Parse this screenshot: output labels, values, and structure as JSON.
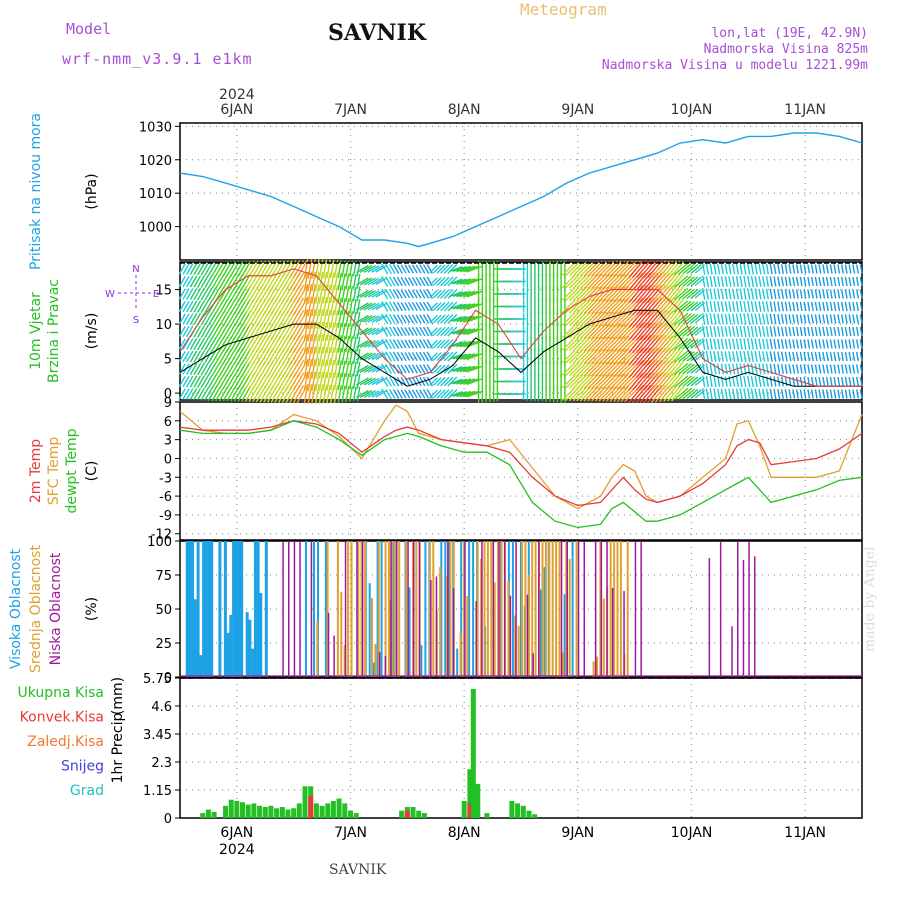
{
  "header": {
    "model_label": "Model",
    "model_name": "wrf-nmm_v3.9.1 e1km",
    "title": "SAVNIK",
    "subtitle": "Meteogram",
    "lonlat": "lon,lat (19E, 42.9N)",
    "altitude": "Nadmorska Visina 825m",
    "model_altitude": "Nadmorska Visina u modelu 1221.99m",
    "footer": "SAVNIK",
    "watermark": "made by Angel"
  },
  "colors": {
    "pressure": "#1ea2e6",
    "temp2m": "#e83a3a",
    "sfc": "#e0a030",
    "dewpt": "#22c022",
    "high_cloud": "#1ea2e6",
    "mid_cloud": "#e0a030",
    "low_cloud": "#a0189a",
    "precip_total": "#22c022",
    "precip_conv": "#e83a3a",
    "precip_frz": "#f07830",
    "snow": "#4040e0",
    "grad": "#20c0c0",
    "wind_hi": "#8a2be2"
  },
  "chart_data": {
    "time_axis": {
      "year": "2024",
      "x_start_day": 5.5,
      "x_end_day": 11.5,
      "ticks": [
        {
          "day": 6,
          "label": "6JAN"
        },
        {
          "day": 7,
          "label": "7JAN"
        },
        {
          "day": 8,
          "label": "8JAN"
        },
        {
          "day": 9,
          "label": "9JAN"
        },
        {
          "day": 10,
          "label": "10JAN"
        },
        {
          "day": 11,
          "label": "11JAN"
        }
      ]
    },
    "panels": [
      {
        "id": "pressure",
        "type": "line",
        "ylabel_lines": [
          "Pritisak na nivou mora"
        ],
        "unit": "(hPa)",
        "ylim": [
          990,
          1031
        ],
        "yticks": [
          1000,
          1010,
          1020,
          1030
        ],
        "series": [
          {
            "key": "pressure",
            "x": [
              5.5,
              5.7,
              5.9,
              6.1,
              6.3,
              6.5,
              6.7,
              6.9,
              7.0,
              7.1,
              7.3,
              7.5,
              7.6,
              7.7,
              7.9,
              8.1,
              8.3,
              8.5,
              8.7,
              8.9,
              9.1,
              9.3,
              9.5,
              9.7,
              9.9,
              10.1,
              10.3,
              10.5,
              10.7,
              10.9,
              11.1,
              11.3,
              11.5
            ],
            "y": [
              1016,
              1015,
              1013,
              1011,
              1009,
              1006,
              1003,
              1000,
              998,
              996,
              996,
              995,
              994,
              995,
              997,
              1000,
              1003,
              1006,
              1009,
              1013,
              1016,
              1018,
              1020,
              1022,
              1025,
              1026,
              1025,
              1027,
              1027,
              1028,
              1028,
              1027,
              1025
            ]
          }
        ]
      },
      {
        "id": "wind",
        "type": "line",
        "ylabel_lines": [
          "10m Vjetar",
          "Brzina i Pravac"
        ],
        "unit": "(m/s)",
        "ylim": [
          -1,
          19
        ],
        "yticks": [
          0,
          5,
          10,
          15
        ],
        "compass": [
          "N",
          "W",
          "E",
          "S"
        ],
        "series": [
          {
            "key": "speed",
            "x": [
              5.5,
              5.7,
              5.9,
              6.1,
              6.3,
              6.5,
              6.7,
              6.9,
              7.1,
              7.3,
              7.5,
              7.7,
              7.9,
              8.1,
              8.3,
              8.5,
              8.7,
              8.9,
              9.1,
              9.3,
              9.5,
              9.7,
              9.9,
              10.1,
              10.3,
              10.5,
              10.7,
              10.9,
              11.1,
              11.3,
              11.5
            ],
            "y": [
              3,
              5,
              7,
              8,
              9,
              10,
              10,
              8,
              5,
              3,
              1,
              2,
              4,
              8,
              6,
              3,
              6,
              8,
              10,
              11,
              12,
              12,
              8,
              3,
              2,
              3,
              2,
              1,
              1,
              1,
              1
            ]
          },
          {
            "key": "gust",
            "x": [
              5.5,
              5.7,
              5.9,
              6.1,
              6.3,
              6.5,
              6.7,
              6.9,
              7.1,
              7.3,
              7.5,
              7.7,
              7.9,
              8.1,
              8.3,
              8.5,
              8.7,
              8.9,
              9.1,
              9.3,
              9.5,
              9.7,
              9.9,
              10.1,
              10.3,
              10.5,
              10.7,
              10.9,
              11.1,
              11.3,
              11.5
            ],
            "y": [
              6,
              11,
              15,
              17,
              17,
              18,
              17,
              13,
              9,
              5,
              2,
              3,
              7,
              12,
              10,
              5,
              9,
              12,
              14,
              15,
              15,
              15,
              12,
              5,
              3,
              4,
              3,
              2,
              1,
              1,
              1
            ]
          }
        ]
      },
      {
        "id": "temp",
        "type": "line",
        "ylabel_lines": [
          "2m Temp",
          "SFC Temp",
          "dewpt Temp"
        ],
        "unit": "(C)",
        "ylim": [
          -13,
          9
        ],
        "yticks": [
          9,
          6,
          3,
          0,
          -3,
          -6,
          -9,
          -12
        ],
        "series": [
          {
            "key": "temp2m",
            "x": [
              5.5,
              5.7,
              5.9,
              6.1,
              6.3,
              6.5,
              6.7,
              6.9,
              7.1,
              7.3,
              7.4,
              7.5,
              7.6,
              7.8,
              8.0,
              8.2,
              8.4,
              8.6,
              8.8,
              9.0,
              9.2,
              9.3,
              9.4,
              9.5,
              9.6,
              9.7,
              9.9,
              10.1,
              10.3,
              10.4,
              10.5,
              10.6,
              10.7,
              10.9,
              11.1,
              11.3,
              11.5
            ],
            "y": [
              5,
              4.5,
              4.5,
              4.5,
              5,
              6,
              5.5,
              4,
              1,
              3.5,
              4.5,
              5,
              4.5,
              3,
              2.5,
              2,
              1,
              -3,
              -6,
              -7.5,
              -7,
              -5,
              -3,
              -5,
              -6.5,
              -7,
              -6,
              -4,
              -1,
              2,
              3,
              2.5,
              -1,
              -0.5,
              0,
              1.5,
              4
            ]
          },
          {
            "key": "sfc",
            "x": [
              5.5,
              5.7,
              5.9,
              6.1,
              6.3,
              6.5,
              6.7,
              6.9,
              7.1,
              7.3,
              7.4,
              7.5,
              7.6,
              7.8,
              8.0,
              8.2,
              8.4,
              8.6,
              8.8,
              9.0,
              9.2,
              9.3,
              9.4,
              9.5,
              9.6,
              9.7,
              9.9,
              10.1,
              10.3,
              10.4,
              10.5,
              10.6,
              10.7,
              10.9,
              11.1,
              11.3,
              11.5
            ],
            "y": [
              7.5,
              4.5,
              4,
              4,
              4.5,
              7,
              6,
              3.5,
              0,
              6,
              8.5,
              7.5,
              4,
              3,
              2.5,
              2,
              3,
              -1.5,
              -6,
              -8,
              -6,
              -3,
              -1,
              -2,
              -6,
              -7,
              -6,
              -3,
              0,
              5.5,
              6,
              2,
              -3,
              -3,
              -3,
              -2,
              7
            ]
          },
          {
            "key": "dewpt",
            "x": [
              5.5,
              5.7,
              5.9,
              6.1,
              6.3,
              6.5,
              6.7,
              6.9,
              7.1,
              7.3,
              7.4,
              7.5,
              7.6,
              7.8,
              8.0,
              8.2,
              8.4,
              8.6,
              8.8,
              9.0,
              9.2,
              9.3,
              9.4,
              9.5,
              9.6,
              9.7,
              9.9,
              10.1,
              10.3,
              10.4,
              10.5,
              10.6,
              10.7,
              10.9,
              11.1,
              11.3,
              11.5
            ],
            "y": [
              4.5,
              4,
              4,
              4,
              4.5,
              6,
              5,
              3,
              0.5,
              3,
              3.5,
              4,
              3.5,
              2,
              1,
              1,
              -1,
              -7,
              -10,
              -11,
              -10.5,
              -8,
              -7,
              -8.5,
              -10,
              -10,
              -9,
              -7,
              -5,
              -4,
              -3,
              -5,
              -7,
              -6,
              -5,
              -3.5,
              -3
            ]
          }
        ]
      },
      {
        "id": "cloud",
        "type": "bar",
        "ylabel_lines": [
          "Visoka Oblacnost",
          "Srednja Oblacnost",
          "Niska Oblacnost"
        ],
        "unit": "(%)",
        "ylim": [
          0,
          100
        ],
        "yticks": [
          0,
          25,
          50,
          75,
          100
        ]
      },
      {
        "id": "precip",
        "type": "bar",
        "ylabel_lines": [
          "1hr Precip"
        ],
        "unit": "(mm)",
        "ylim": [
          0,
          5.75
        ],
        "yticks": [
          0,
          1.15,
          2.3,
          3.45,
          4.6,
          5.75
        ],
        "legend": [
          {
            "key": "precip_total",
            "label": "Ukupna Kisa"
          },
          {
            "key": "precip_conv",
            "label": "Konvek.Kisa"
          },
          {
            "key": "precip_frz",
            "label": "Zaledj.Kisa"
          },
          {
            "key": "snow",
            "label": "Snijeg"
          },
          {
            "key": "grad",
            "label": "Grad"
          }
        ],
        "bars": [
          {
            "x": 5.7,
            "total": 0.2
          },
          {
            "x": 5.75,
            "total": 0.35
          },
          {
            "x": 5.8,
            "total": 0.25
          },
          {
            "x": 5.9,
            "total": 0.5
          },
          {
            "x": 5.95,
            "total": 0.75
          },
          {
            "x": 6.0,
            "total": 0.7
          },
          {
            "x": 6.05,
            "total": 0.65
          },
          {
            "x": 6.1,
            "total": 0.55
          },
          {
            "x": 6.15,
            "total": 0.6
          },
          {
            "x": 6.2,
            "total": 0.5
          },
          {
            "x": 6.25,
            "total": 0.45
          },
          {
            "x": 6.3,
            "total": 0.5
          },
          {
            "x": 6.35,
            "total": 0.4
          },
          {
            "x": 6.4,
            "total": 0.45
          },
          {
            "x": 6.45,
            "total": 0.35
          },
          {
            "x": 6.5,
            "total": 0.4
          },
          {
            "x": 6.55,
            "total": 0.6
          },
          {
            "x": 6.6,
            "total": 1.3
          },
          {
            "x": 6.65,
            "total": 1.3,
            "conv": 0.9
          },
          {
            "x": 6.7,
            "total": 0.6
          },
          {
            "x": 6.75,
            "total": 0.5
          },
          {
            "x": 6.8,
            "total": 0.6
          },
          {
            "x": 6.85,
            "total": 0.7
          },
          {
            "x": 6.9,
            "total": 0.8
          },
          {
            "x": 6.95,
            "total": 0.6
          },
          {
            "x": 7.0,
            "total": 0.3
          },
          {
            "x": 7.05,
            "total": 0.2
          },
          {
            "x": 7.45,
            "total": 0.3
          },
          {
            "x": 7.5,
            "total": 0.45,
            "conv": 0.3
          },
          {
            "x": 7.55,
            "total": 0.45
          },
          {
            "x": 7.6,
            "total": 0.3
          },
          {
            "x": 7.65,
            "total": 0.2
          },
          {
            "x": 8.0,
            "total": 0.7
          },
          {
            "x": 8.05,
            "total": 2.0,
            "conv": 0.6
          },
          {
            "x": 8.08,
            "total": 5.3
          },
          {
            "x": 8.12,
            "total": 1.4
          },
          {
            "x": 8.2,
            "total": 0.2
          },
          {
            "x": 8.42,
            "total": 0.7
          },
          {
            "x": 8.47,
            "total": 0.6
          },
          {
            "x": 8.52,
            "total": 0.5
          },
          {
            "x": 8.57,
            "total": 0.3
          },
          {
            "x": 8.62,
            "total": 0.15
          }
        ]
      }
    ]
  }
}
